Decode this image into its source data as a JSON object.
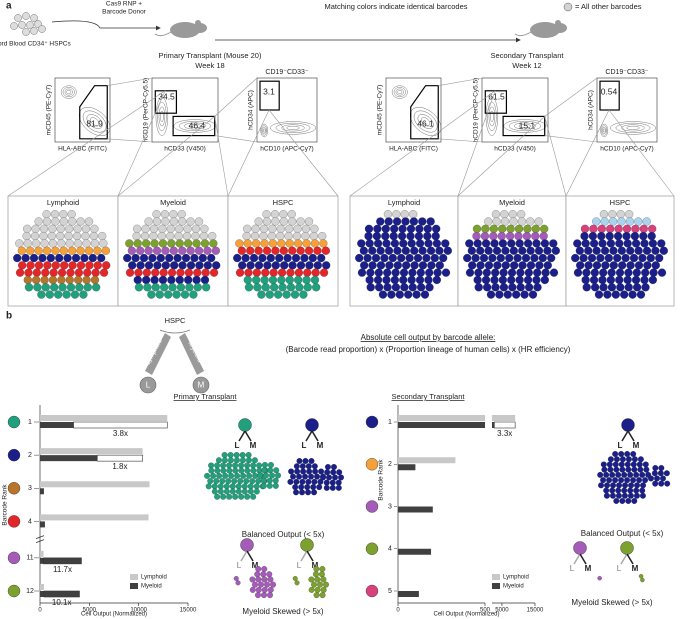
{
  "barcode_colors": [
    "#d3d3d3",
    "#21a07e",
    "#1b1f8a",
    "#b8742a",
    "#e3262a",
    "#a45cb8",
    "#7da12e",
    "#f5a03a",
    "#d8427c",
    "#a9d3ef"
  ],
  "panel_a": {
    "label": "a",
    "source": "Cord Blood CD34⁺ HSPCs",
    "edit_line1": "Cas9 RNP +",
    "edit_line2": "Barcode Donor",
    "legend_text": "Matching colors indicate identical barcodes",
    "legend_other": "= All other barcodes",
    "primary": {
      "title": "Primary Transplant (Mouse 20)",
      "week": "Week 18",
      "gate_title": "CD19⁻CD33⁻",
      "plots": [
        {
          "xlabel": "HLA-ABC (FITC)",
          "ylabel": "mCD45 (PE-Cy7)",
          "gates": [
            81.9
          ]
        },
        {
          "xlabel": "hCD33 (V450)",
          "ylabel": "hCD19 (PerCP-Cy5.5)",
          "gates": [
            34.5,
            46.4
          ]
        },
        {
          "xlabel": "hCD10 (APC-Cy7)",
          "ylabel": "hCD34 (APC)",
          "gates": [
            3.1
          ]
        }
      ],
      "clusters": [
        "Lymphoid",
        "Myeloid",
        "HSPC"
      ]
    },
    "secondary": {
      "title": "Secondary Transplant",
      "week": "Week 12",
      "gate_title": "CD19⁻CD33⁻",
      "plots": [
        {
          "xlabel": "HLA-ABC (FITC)",
          "ylabel": "mCD45 (PE-Cy7)",
          "gates": [
            46.1
          ]
        },
        {
          "xlabel": "hCD33 (V450)",
          "ylabel": "hCD19 (PerCP-Cy5.5)",
          "gates": [
            61.5,
            15.1
          ]
        },
        {
          "xlabel": "hCD10 (APC-Cy7)",
          "ylabel": "hCD34 (APC)",
          "gates": [
            0.54
          ]
        }
      ],
      "clusters": [
        "Lymphoid",
        "Myeloid",
        "HSPC"
      ]
    }
  },
  "panel_b": {
    "label": "b",
    "tree": {
      "root": "HSPC",
      "left": "Lymphoid",
      "right": "Myeloid",
      "leaf_left": "L",
      "leaf_right": "M"
    },
    "formula_title": "Absolute cell output by barcode allele:",
    "formula": "(Barcode read proportion) x (Proportion lineage of human cells) x (HR efficiency)",
    "balanced": "Balanced Output (< 5x)",
    "skewed": "Myeloid Skewed (> 5x)"
  },
  "chart_data": [
    {
      "type": "bar",
      "orientation": "horizontal",
      "title": "Primary Transplant",
      "categories": [
        "1",
        "2",
        "3",
        "4",
        "11",
        "12"
      ],
      "category_colors": [
        "#21a07e",
        "#1b1f8a",
        "#b8742a",
        "#e3262a",
        "#a45cb8",
        "#7da12e"
      ],
      "series": [
        {
          "name": "Lymphoid",
          "color": "#c8c8c8",
          "values": [
            12900,
            10400,
            11100,
            11000,
            360,
            400
          ]
        },
        {
          "name": "Myeloid",
          "color": "#404040",
          "values": [
            3400,
            5800,
            400,
            500,
            4200,
            4000
          ]
        }
      ],
      "fold_labels": [
        "3.8x",
        "1.8x",
        null,
        null,
        "11.7x",
        "10.1x"
      ],
      "x_segments": [
        {
          "xlim": [
            0,
            15000
          ],
          "xticks": [
            0,
            5000,
            10000,
            15000
          ]
        }
      ],
      "xlabel": "Cell Output (Normalized)",
      "ylabel": "Barcode Rank"
    },
    {
      "type": "bar",
      "orientation": "horizontal",
      "title": "Secondary Transplant",
      "categories": [
        "1",
        "2",
        "3",
        "4",
        "5"
      ],
      "category_colors": [
        "#1b1f8a",
        "#f5a03a",
        "#a45cb8",
        "#7da12e",
        "#d8427c"
      ],
      "series": [
        {
          "name": "Lymphoid",
          "color": "#c8c8c8",
          "values": [
            9000,
            330,
            0,
            0,
            0
          ]
        },
        {
          "name": "Myeloid",
          "color": "#404040",
          "values": [
            2700,
            100,
            200,
            190,
            120
          ]
        }
      ],
      "fold_labels": [
        "3.3x",
        null,
        null,
        null,
        null
      ],
      "x_segments": [
        {
          "xlim": [
            0,
            500
          ],
          "xticks": [
            0,
            500
          ]
        },
        {
          "xlim": [
            2000,
            15000
          ],
          "xticks": [
            5000,
            15000
          ]
        }
      ],
      "xlabel": "Cell Output (Normalized)",
      "ylabel": "Barcode Rank"
    }
  ]
}
